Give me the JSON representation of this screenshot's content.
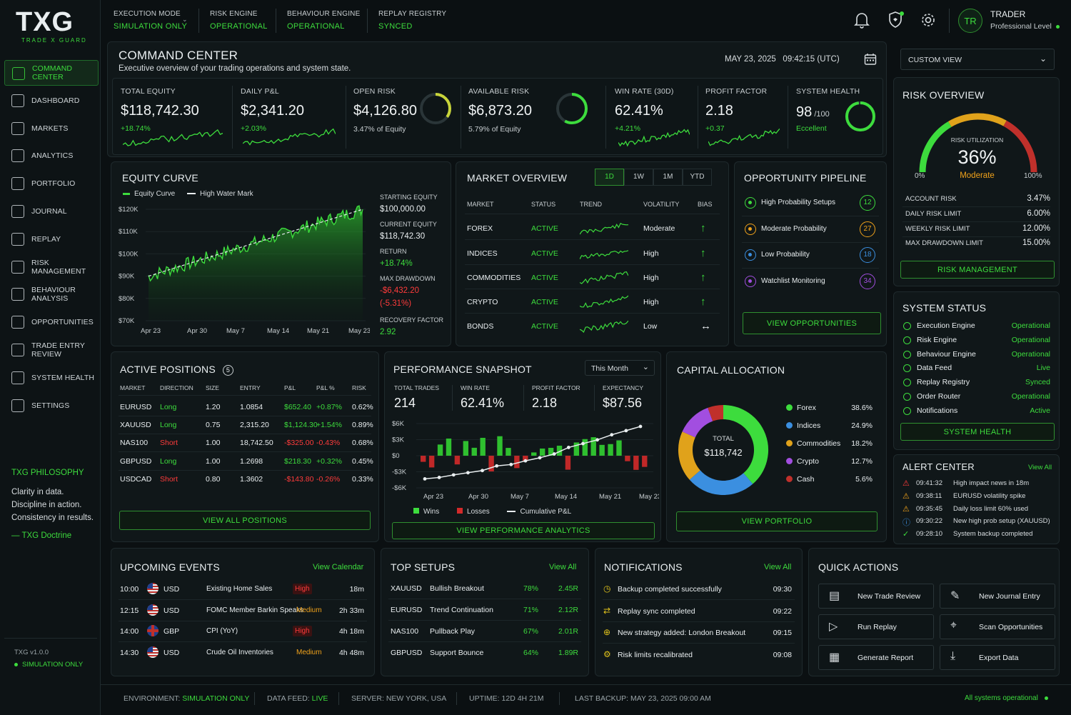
{
  "brand": {
    "logo": "TXG",
    "tagline": "TRADE X GUARD"
  },
  "header": {
    "execution_mode": {
      "label": "EXECUTION MODE",
      "value": "SIMULATION ONLY"
    },
    "risk_engine": {
      "label": "RISK ENGINE",
      "value": "OPERATIONAL"
    },
    "behaviour_engine": {
      "label": "BEHAVIOUR ENGINE",
      "value": "OPERATIONAL"
    },
    "replay_registry": {
      "label": "REPLAY REGISTRY",
      "value": "SYNCED"
    },
    "user_initials": "TR",
    "user_name": "TRADER",
    "user_level": "Professional Level"
  },
  "sidebar": {
    "items": [
      {
        "label": "COMMAND CENTER",
        "active": true
      },
      {
        "label": "DASHBOARD"
      },
      {
        "label": "MARKETS"
      },
      {
        "label": "ANALYTICS"
      },
      {
        "label": "PORTFOLIO"
      },
      {
        "label": "JOURNAL"
      },
      {
        "label": "REPLAY"
      },
      {
        "label": "RISK MANAGEMENT"
      },
      {
        "label": "BEHAVIOUR ANALYSIS"
      },
      {
        "label": "OPPORTUNITIES"
      },
      {
        "label": "TRADE ENTRY REVIEW"
      },
      {
        "label": "SYSTEM HEALTH"
      },
      {
        "label": "SETTINGS"
      }
    ],
    "philosophy_title": "TXG PHILOSOPHY",
    "philosophy_lines": [
      "Clarity in data.",
      "Discipline in action.",
      "Consistency in results."
    ],
    "doctrine": "— TXG Doctrine",
    "version": "TXG v1.0.0",
    "mode": "SIMULATION ONLY"
  },
  "page": {
    "title": "COMMAND CENTER",
    "subtitle": "Executive overview of your trading operations and system state.",
    "date": "MAY 23, 2025",
    "time": "09:42:15 (UTC)",
    "view_select": "CUSTOM VIEW"
  },
  "kpis": {
    "total_equity": {
      "label": "TOTAL EQUITY",
      "value": "$118,742.30",
      "sub": "+18.74%"
    },
    "daily_pl": {
      "label": "DAILY P&L",
      "value": "$2,341.20",
      "sub": "+2.03%"
    },
    "open_risk": {
      "label": "OPEN RISK",
      "value": "$4,126.80",
      "sub": "3.47% of Equity",
      "gauge": 0.35
    },
    "available_risk": {
      "label": "AVAILABLE RISK",
      "value": "$6,873.20",
      "sub": "5.79% of Equity",
      "gauge": 0.58
    },
    "win_rate": {
      "label": "WIN RATE (30D)",
      "value": "62.41%",
      "sub": "+4.21%"
    },
    "profit_factor": {
      "label": "PROFIT FACTOR",
      "value": "2.18",
      "sub": "+0.37"
    },
    "system_health": {
      "label": "SYSTEM HEALTH",
      "value": "98",
      "unit": "/100",
      "sub": "Eccellent",
      "gauge": 0.98
    }
  },
  "equity_curve": {
    "title": "EQUITY CURVE",
    "legend": [
      "Equity Curve",
      "High Water Mark"
    ],
    "y_ticks": [
      "$120K",
      "$110K",
      "$100K",
      "$90K",
      "$80K",
      "$70K"
    ],
    "x_ticks": [
      "Apr 23",
      "Apr 30",
      "May 7",
      "May 14",
      "May 21",
      "May 23"
    ],
    "stats": [
      {
        "label": "STARTING EQUITY",
        "value": "$100,000.00",
        "color": "white"
      },
      {
        "label": "CURRENT EQUITY",
        "value": "$118,742.30",
        "color": "white"
      },
      {
        "label": "RETURN",
        "value": "+18.74%",
        "color": "green"
      },
      {
        "label": "MAX DRAWDOWN",
        "value": "-$6,432.20",
        "value2": "(-5.31%)",
        "color": "red"
      },
      {
        "label": "RECOVERY FACTOR",
        "value": "2.92",
        "color": "green"
      }
    ]
  },
  "market_overview": {
    "title": "MARKET OVERVIEW",
    "tabs": [
      "1D",
      "1W",
      "1M",
      "YTD"
    ],
    "headers": [
      "MARKET",
      "STATUS",
      "TREND",
      "VOLATILITY",
      "BIAS"
    ],
    "rows": [
      {
        "market": "FOREX",
        "status": "ACTIVE",
        "vol": "Moderate",
        "bias": "↑"
      },
      {
        "market": "INDICES",
        "status": "ACTIVE",
        "vol": "High",
        "bias": "↑"
      },
      {
        "market": "COMMODITIES",
        "status": "ACTIVE",
        "vol": "High",
        "bias": "↑"
      },
      {
        "market": "CRYPTO",
        "status": "ACTIVE",
        "vol": "High",
        "bias": "↑"
      },
      {
        "market": "BONDS",
        "status": "ACTIVE",
        "vol": "Low",
        "bias": "↔"
      }
    ]
  },
  "opportunity": {
    "title": "OPPORTUNITY PIPELINE",
    "rows": [
      {
        "label": "High Probability Setups",
        "count": "12",
        "color": "#3ddc3d"
      },
      {
        "label": "Moderate Probability",
        "count": "27",
        "color": "#f0a21b"
      },
      {
        "label": "Low Probability",
        "count": "18",
        "color": "#3b8fe0"
      },
      {
        "label": "Watchlist Monitoring",
        "count": "34",
        "color": "#a24ee0"
      }
    ],
    "button": "VIEW OPPORTUNITIES"
  },
  "risk_overview": {
    "title": "RISK OVERVIEW",
    "util_label": "RISK UTILIZATION",
    "util_value": "36%",
    "util_level": 0.36,
    "util_text": "Moderate",
    "min": "0%",
    "max": "100%",
    "rows": [
      {
        "label": "ACCOUNT RISK",
        "value": "3.47%"
      },
      {
        "label": "DAILY RISK LIMIT",
        "value": "6.00%"
      },
      {
        "label": "WEEKLY RISK LIMIT",
        "value": "12.00%"
      },
      {
        "label": "MAX DRAWDOWN LIMIT",
        "value": "15.00%"
      }
    ],
    "button": "RISK MANAGEMENT"
  },
  "active_positions": {
    "title": "ACTIVE POSITIONS",
    "count": "5",
    "headers": [
      "MARKET",
      "DIRECTION",
      "SIZE",
      "ENTRY",
      "P&L",
      "P&L %",
      "RISK"
    ],
    "rows": [
      {
        "market": "EURUSD",
        "dir": "Long",
        "size": "1.20",
        "entry": "1.0854",
        "pl": "$652.40",
        "plp": "+0.87%",
        "risk": "0.62%",
        "pos": true
      },
      {
        "market": "XAUUSD",
        "dir": "Long",
        "size": "0.75",
        "entry": "2,315.20",
        "pl": "$1,124.30",
        "plp": "+1.54%",
        "risk": "0.89%",
        "pos": true
      },
      {
        "market": "NAS100",
        "dir": "Short",
        "size": "1.00",
        "entry": "18,742.50",
        "pl": "-$325.00",
        "plp": "-0.43%",
        "risk": "0.68%",
        "pos": false
      },
      {
        "market": "GBPUSD",
        "dir": "Long",
        "size": "1.00",
        "entry": "1.2698",
        "pl": "$218.30",
        "plp": "+0.32%",
        "risk": "0.45%",
        "pos": true
      },
      {
        "market": "USDCAD",
        "dir": "Short",
        "size": "0.80",
        "entry": "1.3602",
        "pl": "-$143.80",
        "plp": "-0.26%",
        "risk": "0.33%",
        "pos": false
      }
    ],
    "button": "VIEW ALL POSITIONS"
  },
  "performance": {
    "title": "PERFORMANCE SNAPSHOT",
    "period": "This Month",
    "stats": [
      {
        "label": "TOTAL TRADES",
        "value": "214"
      },
      {
        "label": "WIN RATE",
        "value": "62.41%"
      },
      {
        "label": "PROFIT FACTOR",
        "value": "2.18"
      },
      {
        "label": "EXPECTANCY",
        "value": "$87.56"
      }
    ],
    "y_ticks": [
      "$6K",
      "$3K",
      "$0",
      "-$3K",
      "-$6K"
    ],
    "x_ticks": [
      "Apr 23",
      "Apr 30",
      "May 7",
      "May 14",
      "May 21",
      "May 23"
    ],
    "legend": [
      "Wins",
      "Losses",
      "Cumulative P&L"
    ],
    "button": "VIEW PERFORMANCE ANALYTICS"
  },
  "capital": {
    "title": "CAPITAL ALLOCATION",
    "total_label": "TOTAL",
    "total": "$118,742",
    "items": [
      {
        "label": "Forex",
        "value": "38.6%",
        "pct": 38.6,
        "color": "#3ddc3d"
      },
      {
        "label": "Indices",
        "value": "24.9%",
        "pct": 24.9,
        "color": "#3b8fe0"
      },
      {
        "label": "Commodities",
        "value": "18.2%",
        "pct": 18.2,
        "color": "#e0a21b"
      },
      {
        "label": "Crypto",
        "value": "12.7%",
        "pct": 12.7,
        "color": "#a24ee0"
      },
      {
        "label": "Cash",
        "value": "5.6%",
        "pct": 5.6,
        "color": "#c0302b"
      }
    ],
    "button": "VIEW PORTFOLIO"
  },
  "system_status": {
    "title": "SYSTEM STATUS",
    "rows": [
      {
        "label": "Execution Engine",
        "value": "Operational"
      },
      {
        "label": "Risk Engine",
        "value": "Operational"
      },
      {
        "label": "Behaviour Engine",
        "value": "Operational"
      },
      {
        "label": "Data Feed",
        "value": "Live"
      },
      {
        "label": "Replay Registry",
        "value": "Synced"
      },
      {
        "label": "Order Router",
        "value": "Operational"
      },
      {
        "label": "Notifications",
        "value": "Active"
      }
    ],
    "button": "SYSTEM HEALTH"
  },
  "alerts": {
    "title": "ALERT CENTER",
    "link": "View All",
    "rows": [
      {
        "time": "09:41:32",
        "text": "High impact news in 18m",
        "icon": "warning-red-icon",
        "color": "#ff3b3b"
      },
      {
        "time": "09:38:11",
        "text": "EURUSD volatility spike",
        "icon": "warning-orange-icon",
        "color": "#f0a21b"
      },
      {
        "time": "09:35:45",
        "text": "Daily loss limit 60% used",
        "icon": "warning-orange-icon",
        "color": "#f0a21b"
      },
      {
        "time": "09:30:22",
        "text": "New high prob setup (XAUUSD)",
        "icon": "info-icon",
        "color": "#3b8fe0"
      },
      {
        "time": "09:28:10",
        "text": "System backup completed",
        "icon": "check-icon",
        "color": "#3ddc3d"
      }
    ]
  },
  "events": {
    "title": "UPCOMING EVENTS",
    "link": "View Calendar",
    "rows": [
      {
        "time": "10:00",
        "ccy": "USD",
        "name": "Existing Home Sales",
        "impact": "High",
        "eta": "18m",
        "flag": "us"
      },
      {
        "time": "12:15",
        "ccy": "USD",
        "name": "FOMC Member Barkin Speaks",
        "impact": "Medium",
        "eta": "2h 33m",
        "flag": "us"
      },
      {
        "time": "14:00",
        "ccy": "GBP",
        "name": "CPI (YoY)",
        "impact": "High",
        "eta": "4h 18m",
        "flag": "gb"
      },
      {
        "time": "14:30",
        "ccy": "USD",
        "name": "Crude Oil Inventories",
        "impact": "Medium",
        "eta": "4h 48m",
        "flag": "us"
      }
    ]
  },
  "setups": {
    "title": "TOP SETUPS",
    "link": "View All",
    "rows": [
      {
        "sym": "XAUUSD",
        "name": "Bullish Breakout",
        "pct": "78%",
        "r": "2.45R"
      },
      {
        "sym": "EURUSD",
        "name": "Trend Continuation",
        "pct": "71%",
        "r": "2.12R"
      },
      {
        "sym": "NAS100",
        "name": "Pullback Play",
        "pct": "67%",
        "r": "2.01R"
      },
      {
        "sym": "GBPUSD",
        "name": "Support Bounce",
        "pct": "64%",
        "r": "1.89R"
      }
    ]
  },
  "notifications": {
    "title": "NOTIFICATIONS",
    "link": "View All",
    "rows": [
      {
        "text": "Backup completed successfully",
        "time": "09:30"
      },
      {
        "text": "Replay sync completed",
        "time": "09:22"
      },
      {
        "text": "New strategy added: London Breakout",
        "time": "09:15"
      },
      {
        "text": "Risk limits recalibrated",
        "time": "09:08"
      }
    ]
  },
  "quick_actions": {
    "title": "QUICK ACTIONS",
    "items": [
      "New Trade Review",
      "New Journal Entry",
      "Run Replay",
      "Scan Opportunities",
      "Generate Report",
      "Export Data"
    ]
  },
  "footer": {
    "env_label": "ENVIRONMENT:",
    "env": "SIMULATION ONLY",
    "feed_label": "DATA FEED:",
    "feed": "LIVE",
    "server_label": "SERVER:",
    "server": "NEW YORK, USA",
    "uptime_label": "UPTIME:",
    "uptime": "12D 4H 21M",
    "backup_label": "LAST BACKUP:",
    "backup": "MAY 23, 2025 09:00 AM",
    "status": "All systems operational"
  }
}
